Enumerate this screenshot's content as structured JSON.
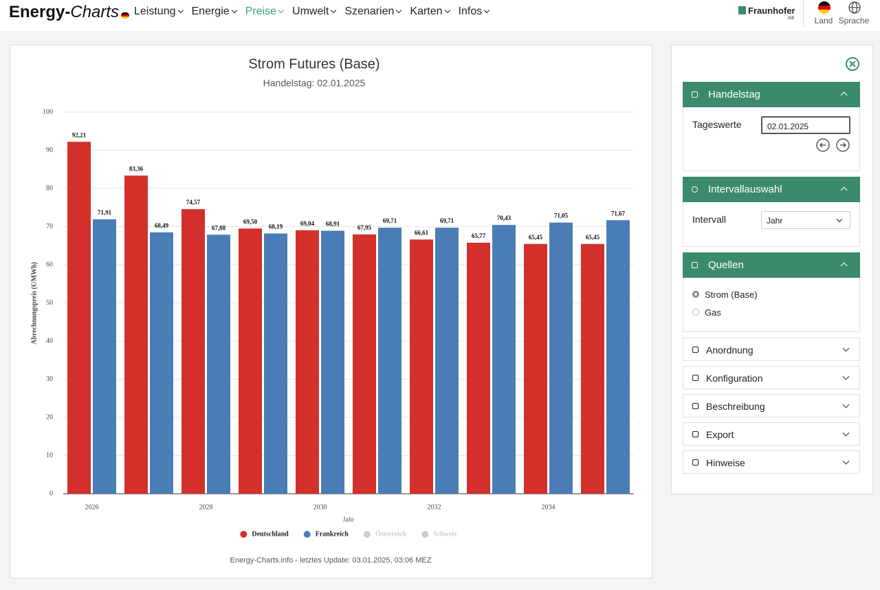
{
  "header": {
    "logo_main": "Energy-",
    "logo_italic": "Charts",
    "menu": [
      "Leistung",
      "Energie",
      "Preise",
      "Umwelt",
      "Szenarien",
      "Karten",
      "Infos"
    ],
    "brand": "Fraunhofer",
    "brand_sub": "ISE",
    "country": "Land",
    "language": "Sprache"
  },
  "chart_data": {
    "type": "bar",
    "title": "Strom Futures (Base)",
    "subtitle": "Handelstag: 02.01.2025",
    "x_label": "Jahr",
    "y_label": "Abrechnungspreis (€/MWh)",
    "categories": [
      "2026",
      null,
      "2028",
      null,
      "2030",
      null,
      "2032",
      null,
      "2034",
      null
    ],
    "series": [
      {
        "name": "Deutschland",
        "color": "#d3302b",
        "values": [
          92.21,
          83.36,
          74.57,
          69.5,
          69.04,
          67.95,
          66.61,
          65.77,
          65.45,
          65.45
        ],
        "value_labels": [
          "92,21",
          "83,36",
          "74,57",
          "69,50",
          "69,04",
          "67,95",
          "66,61",
          "65,77",
          "65,45",
          "65,45"
        ]
      },
      {
        "name": "Frankreich",
        "color": "#4a7db5",
        "values": [
          71.91,
          68.49,
          67.88,
          68.19,
          68.91,
          69.71,
          69.71,
          70.43,
          71.05,
          71.67
        ],
        "value_labels": [
          "71,91",
          "68,49",
          "67,88",
          "68,19",
          "68,91",
          "69,71",
          "69,71",
          "70,43",
          "71,05",
          "71,67"
        ]
      }
    ],
    "inactive_legend": [
      "Österreich",
      "Schweiz"
    ],
    "inactive_color": "#cccccc",
    "ylim": [
      0,
      100
    ],
    "yticks": [
      0,
      10,
      20,
      30,
      40,
      50,
      60,
      70,
      80,
      90,
      100
    ],
    "grid": true,
    "legend": "bottom",
    "footer": "Energy-Charts.info - letztes Update: 03.01.2025, 03:06 MEZ"
  },
  "sidebar": {
    "trading_day": {
      "title": "Handelstag",
      "label": "Tageswerte",
      "value": "02.01.2025"
    },
    "interval": {
      "title": "Intervallauswahl",
      "label": "Intervall",
      "value": "Jahr"
    },
    "sources": {
      "title": "Quellen",
      "options": [
        "Strom (Base)",
        "Gas"
      ]
    },
    "sections": [
      "Anordnung",
      "Konfiguration",
      "Beschreibung",
      "Export",
      "Hinweise"
    ]
  }
}
